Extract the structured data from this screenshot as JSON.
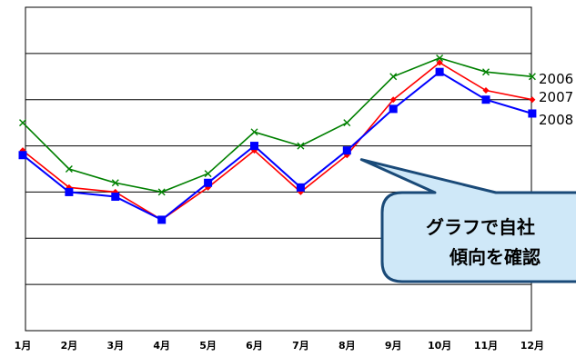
{
  "chart_data": {
    "type": "line",
    "x": [
      "1月",
      "2月",
      "3月",
      "4月",
      "5月",
      "6月",
      "7月",
      "8月",
      "9月",
      "10月",
      "11月",
      "12月"
    ],
    "ylim": [
      0,
      7
    ],
    "yticks": [
      0,
      1,
      2,
      3,
      4,
      5,
      6,
      7
    ],
    "grid": true,
    "series": [
      {
        "name": "2006",
        "color": "#008000",
        "marker": "x",
        "values": [
          4.5,
          3.5,
          3.2,
          3.0,
          3.4,
          4.3,
          4.0,
          4.5,
          5.5,
          5.9,
          5.6,
          5.5
        ]
      },
      {
        "name": "2007",
        "color": "#ff0000",
        "marker": "diamond",
        "values": [
          3.9,
          3.1,
          3.0,
          2.4,
          3.1,
          3.9,
          3.0,
          3.8,
          5.0,
          5.8,
          5.2,
          5.0
        ]
      },
      {
        "name": "2008",
        "color": "#0000ff",
        "marker": "square",
        "values": [
          3.8,
          3.0,
          2.9,
          2.4,
          3.2,
          4.0,
          3.1,
          3.9,
          4.8,
          5.6,
          5.0,
          4.7
        ]
      }
    ],
    "annotation": {
      "lines": [
        "グラフで自社",
        "傾向を確認"
      ],
      "fill": "#cfe8f8",
      "stroke": "#1a4a78"
    }
  }
}
